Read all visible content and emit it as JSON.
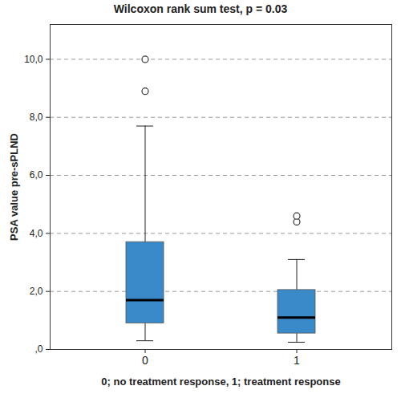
{
  "chart_data": {
    "type": "box",
    "title": "Wilcoxon rank sum test, p = 0.03",
    "x_label": "0; no treatment response, 1; treatment response",
    "y_label": "PSA value pre-sPLND",
    "categories": [
      "0",
      "1"
    ],
    "boxes": [
      {
        "whisker_low": 0.3,
        "q1": 0.9,
        "median": 1.7,
        "q3": 3.7,
        "whisker_high": 7.7,
        "outliers": [
          8.9,
          10.0
        ]
      },
      {
        "whisker_low": 0.25,
        "q1": 0.55,
        "median": 1.1,
        "q3": 2.05,
        "whisker_high": 3.1,
        "outliers": [
          4.4,
          4.6
        ]
      }
    ],
    "color": "#3a89c9",
    "ylim": [
      0,
      11.2
    ],
    "yticks": [
      {
        "value": 0,
        "label": ",0"
      },
      {
        "value": 2,
        "label": "2,0"
      },
      {
        "value": 4,
        "label": "4,0"
      },
      {
        "value": 6,
        "label": "6,0"
      },
      {
        "value": 8,
        "label": "8,0"
      },
      {
        "value": 10,
        "label": "10,0"
      }
    ],
    "grid": true
  }
}
